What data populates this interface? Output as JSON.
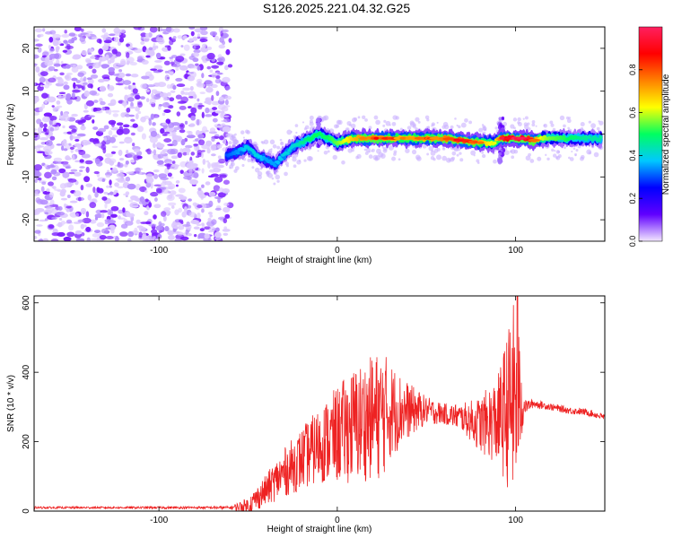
{
  "title": "S126.2025.221.04.32.G25",
  "chart_data": [
    {
      "type": "heatmap",
      "xlabel": "Height of straight line (km)",
      "ylabel": "Frequency (Hz)",
      "xlim": [
        -170,
        150
      ],
      "ylim": [
        -25,
        25
      ],
      "x_ticks": [
        -100,
        0,
        100
      ],
      "y_ticks": [
        20,
        10,
        0,
        -10,
        -20
      ],
      "colorbar": {
        "label": "Normalized spectral amplitude",
        "range": [
          0,
          1
        ],
        "ticks": [
          "0.0",
          "0.2",
          "0.4",
          "0.6",
          "0.8"
        ],
        "colors": [
          "#f3e8ff",
          "#6000ff",
          "#0000ff",
          "#00c8ff",
          "#00ff60",
          "#ffff00",
          "#ff8000",
          "#ff0000",
          "#ff2060"
        ]
      },
      "noise_region": {
        "x_range": [
          -170,
          -60
        ],
        "y_range": [
          -25,
          25
        ],
        "amplitude_range": [
          0.0,
          0.12
        ]
      },
      "ridge": {
        "x": [
          -62,
          -55,
          -50,
          -45,
          -40,
          -35,
          -30,
          -25,
          -20,
          -15,
          -10,
          -5,
          0,
          10,
          20,
          30,
          40,
          50,
          60,
          70,
          80,
          88,
          92,
          96,
          100,
          105,
          110,
          115,
          120,
          130,
          140,
          148
        ],
        "freq": [
          -5,
          -4,
          -3,
          -5,
          -6,
          -7,
          -5,
          -3,
          -2,
          -1,
          0,
          -1,
          -2,
          -1,
          -1,
          -1,
          -1,
          -1,
          -1,
          -1.5,
          -2,
          -2,
          -1,
          -1,
          -1,
          -1,
          -1.5,
          -1,
          -1,
          -1,
          -1,
          -1
        ],
        "amplitude": [
          0.3,
          0.35,
          0.4,
          0.4,
          0.35,
          0.35,
          0.4,
          0.4,
          0.45,
          0.5,
          0.5,
          0.5,
          0.55,
          0.7,
          0.75,
          0.7,
          0.7,
          0.7,
          0.75,
          0.8,
          0.7,
          0.6,
          0.8,
          0.9,
          0.95,
          0.9,
          0.75,
          0.6,
          0.55,
          0.5,
          0.45,
          0.45
        ]
      },
      "spikes": [
        {
          "x": -10,
          "freq_range": [
            -3,
            4
          ]
        },
        {
          "x": 92,
          "freq_range": [
            -7,
            6
          ]
        }
      ]
    },
    {
      "type": "line",
      "xlabel": "Height of straight line (km)",
      "ylabel": "SNR (10 * v/v)",
      "xlim": [
        -170,
        150
      ],
      "ylim": [
        0,
        620
      ],
      "x_ticks": [
        -100,
        0,
        100
      ],
      "y_ticks": [
        0,
        200,
        400,
        600
      ],
      "color": "#ee2222",
      "series": [
        {
          "envelope_x": [
            -170,
            -120,
            -60,
            -50,
            -40,
            -30,
            -20,
            -10,
            0,
            10,
            20,
            25,
            30,
            40,
            50,
            60,
            70,
            80,
            90,
            95,
            100,
            105,
            110,
            120,
            130,
            140,
            150
          ],
          "envelope_mean": [
            10,
            10,
            10,
            15,
            60,
            110,
            150,
            190,
            220,
            250,
            270,
            280,
            290,
            290,
            290,
            280,
            270,
            250,
            260,
            290,
            330,
            300,
            310,
            300,
            290,
            285,
            270
          ],
          "envelope_amp": [
            3,
            3,
            4,
            25,
            45,
            70,
            90,
            110,
            140,
            170,
            180,
            190,
            140,
            80,
            40,
            30,
            40,
            80,
            130,
            220,
            300,
            20,
            12,
            10,
            10,
            10,
            10
          ],
          "peak": {
            "x": 101,
            "y": 620
          }
        }
      ]
    }
  ]
}
